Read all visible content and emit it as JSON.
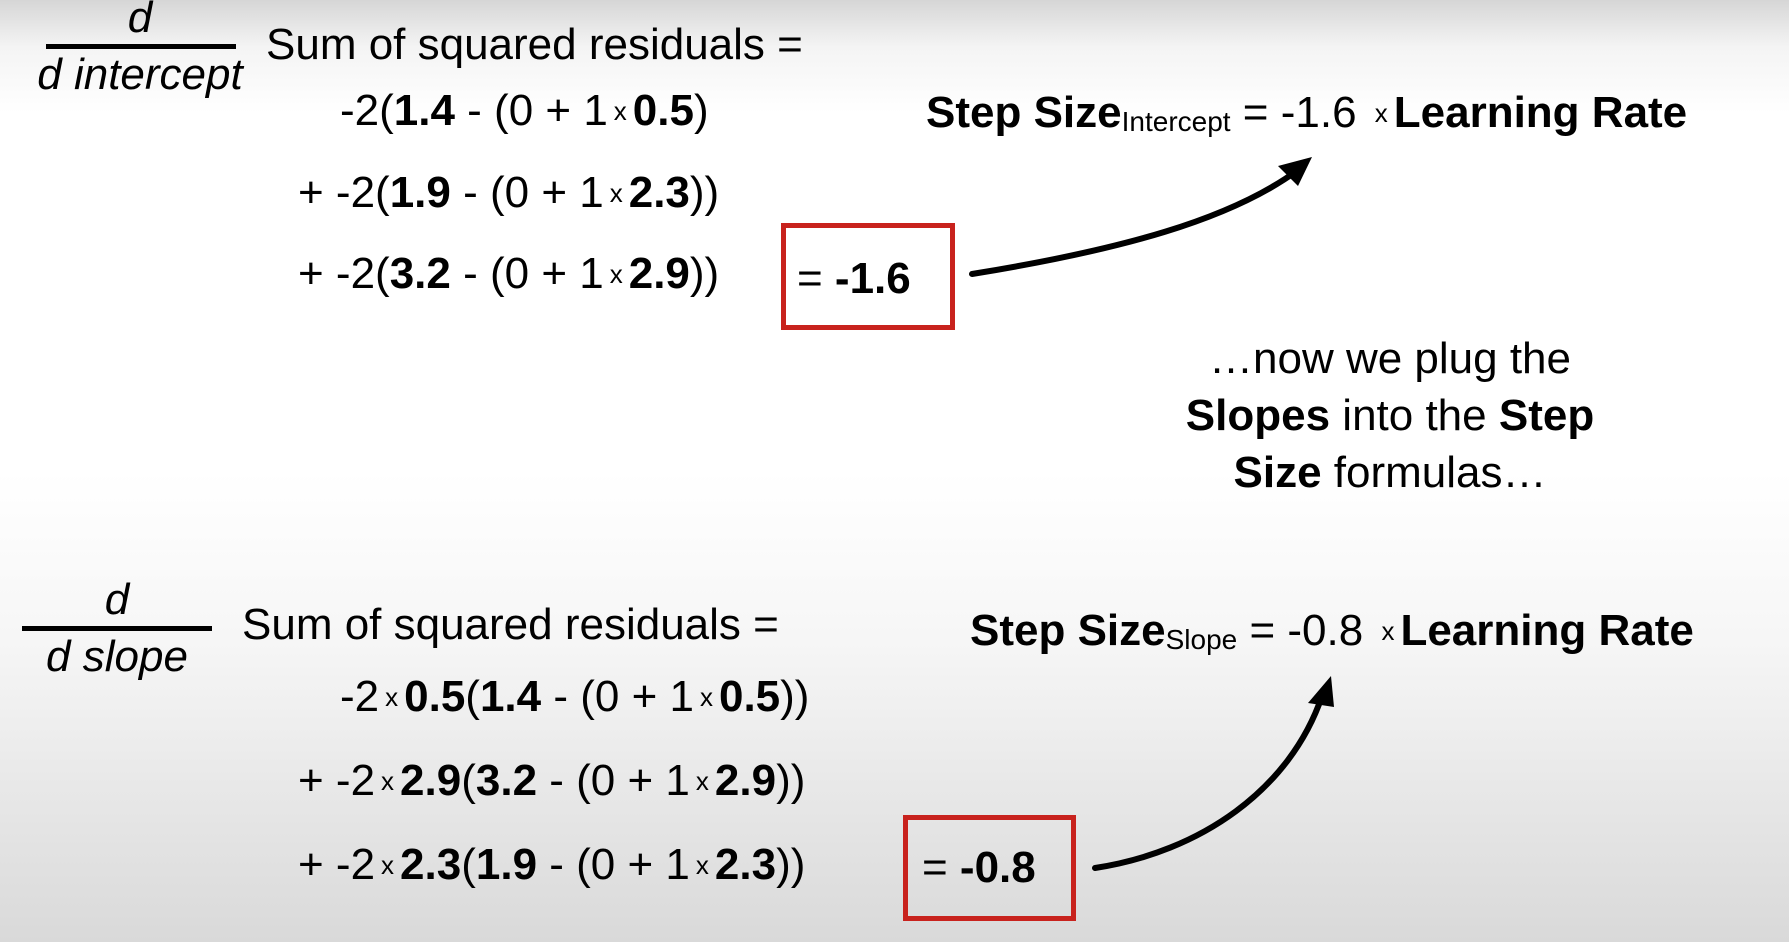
{
  "intercept": {
    "derivative": {
      "numerator": "d",
      "denominator": "d intercept"
    },
    "heading": "Sum of squared residuals =",
    "lines": [
      {
        "prefix": "-2(",
        "b1": "1.4",
        "mid": " - (0 + 1",
        "x": "x",
        "b2": "0.5",
        "suffix": ")"
      },
      {
        "prefix": "+ -2(",
        "b1": "1.9",
        "mid": " - (0 + 1",
        "x": "x",
        "b2": "2.3",
        "suffix": "))"
      },
      {
        "prefix": "+ -2(",
        "b1": "3.2",
        "mid": " - (0 + 1",
        "x": "x",
        "b2": "2.9",
        "suffix": "))"
      }
    ],
    "result": {
      "eq": "= ",
      "value": "-1.6"
    },
    "step_size": {
      "label": "Step Size",
      "subscript": "Intercept",
      "equals": " = -1.6 ",
      "x": "x",
      "lr": "Learning Rate"
    }
  },
  "caption": {
    "line1": "…now we plug the",
    "line2_b1": "Slopes",
    "line2_mid": " into the ",
    "line2_b2": "Step",
    "line3_b": "Size",
    "line3_rest": " formulas…"
  },
  "slope": {
    "derivative": {
      "numerator": "d",
      "denominator": "d slope"
    },
    "heading": "Sum of squared residuals =",
    "lines": [
      {
        "prefix": "-2",
        "x1": "x",
        "b0": "0.5",
        "open": "(",
        "b1": "1.4",
        "mid": " - (0 + 1",
        "x2": "x",
        "b2": "0.5",
        "suffix": "))"
      },
      {
        "prefix": "+ -2",
        "x1": "x",
        "b0": "2.9",
        "open": "(",
        "b1": "3.2",
        "mid": " - (0 + 1",
        "x2": "x",
        "b2": "2.9",
        "suffix": "))"
      },
      {
        "prefix": "+ -2",
        "x1": "x",
        "b0": "2.3",
        "open": "(",
        "b1": "1.9",
        "mid": " - (0 + 1",
        "x2": "x",
        "b2": "2.3",
        "suffix": "))"
      }
    ],
    "result": {
      "eq": "= ",
      "value": "-0.8"
    },
    "step_size": {
      "label": "Step Size",
      "subscript": "Slope",
      "equals": " = -0.8 ",
      "x": "x",
      "lr": "Learning Rate"
    }
  }
}
